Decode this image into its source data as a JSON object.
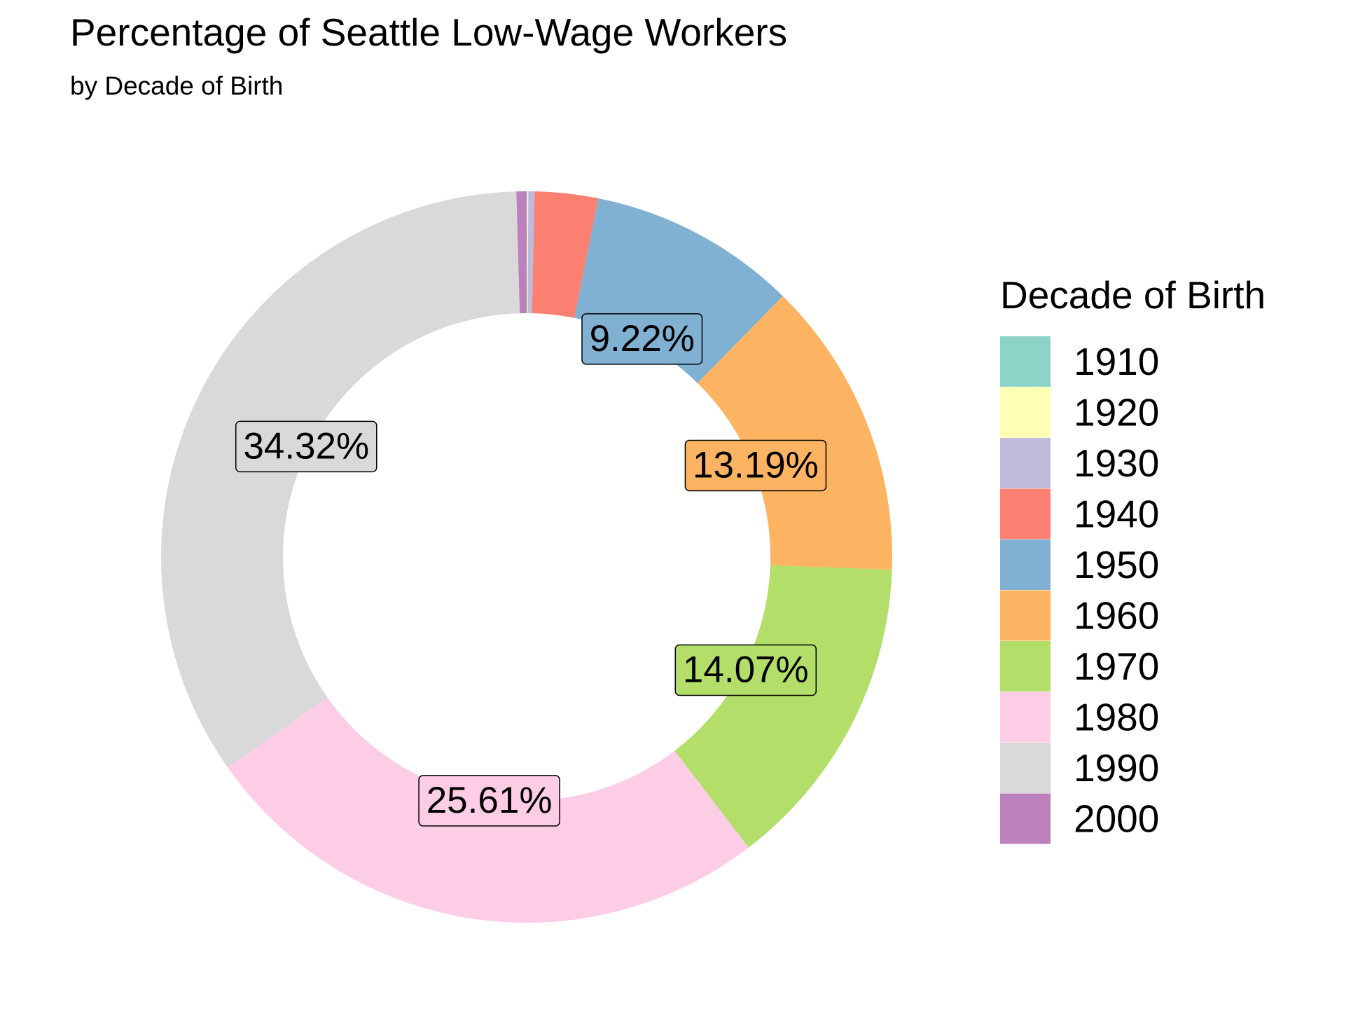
{
  "chart_data": {
    "type": "pie",
    "donut": true,
    "title": "Percentage of Seattle Low-Wage Workers",
    "subtitle": "by Decade of Birth",
    "legend_title": "Decade of Birth",
    "legend_position": "right",
    "slices": [
      {
        "label": "1910",
        "value": 0.02,
        "color": "#8DD3C7",
        "label_text": ""
      },
      {
        "label": "1920",
        "value": 0.05,
        "color": "#FFFFB3",
        "label_text": ""
      },
      {
        "label": "1930",
        "value": 0.28,
        "color": "#BEBADA",
        "label_text": ""
      },
      {
        "label": "1940",
        "value": 2.79,
        "color": "#FB8072",
        "label_text": ""
      },
      {
        "label": "1950",
        "value": 9.22,
        "color": "#80B1D3",
        "label_text": "9.22%"
      },
      {
        "label": "1960",
        "value": 13.19,
        "color": "#FDB462",
        "label_text": "13.19%"
      },
      {
        "label": "1970",
        "value": 14.07,
        "color": "#B3DE69",
        "label_text": "14.07%"
      },
      {
        "label": "1980",
        "value": 25.61,
        "color": "#FCCDE5",
        "label_text": "25.61%"
      },
      {
        "label": "1990",
        "value": 34.32,
        "color": "#D9D9D9",
        "label_text": "34.32%"
      },
      {
        "label": "2000",
        "value": 0.45,
        "color": "#BC80BD",
        "label_text": ""
      }
    ]
  }
}
